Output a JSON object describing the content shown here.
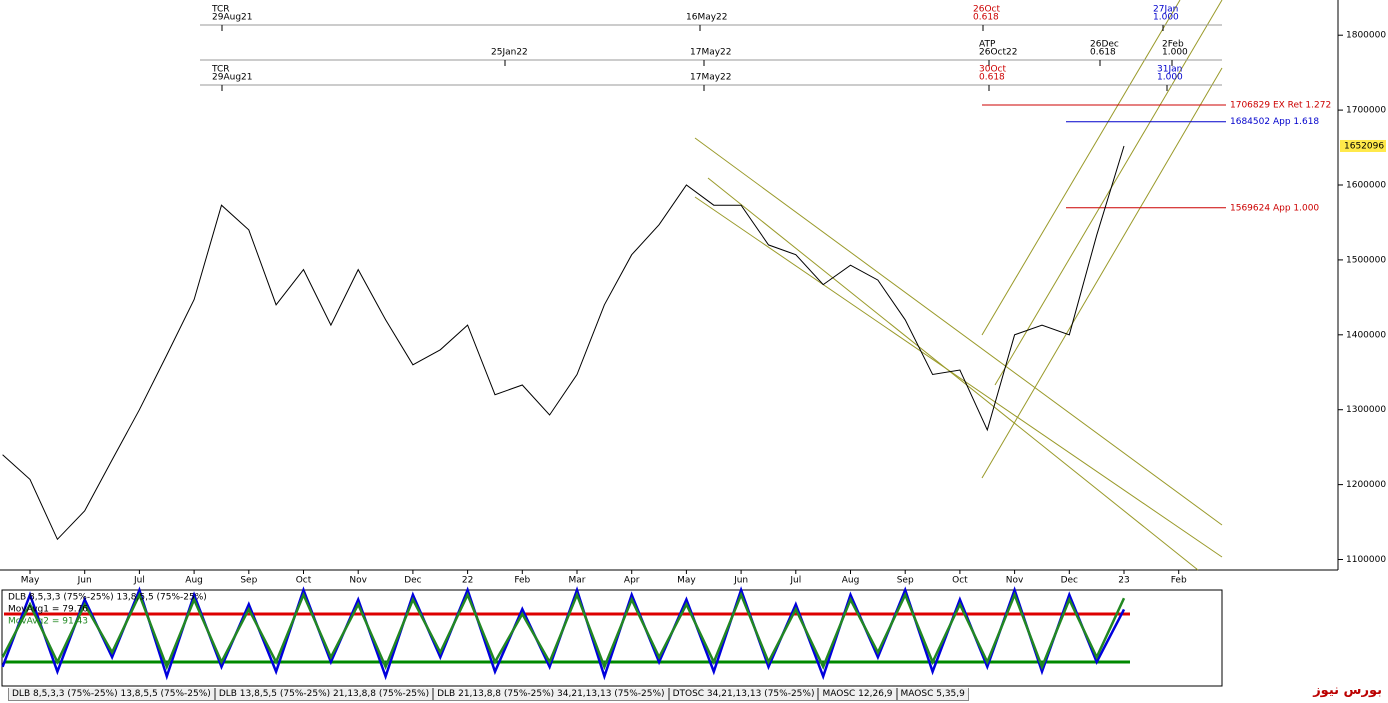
{
  "chart_data": [
    {
      "type": "line",
      "categories": [
        null,
        "May",
        null,
        "Jun",
        null,
        "Jul",
        null,
        "Aug",
        null,
        "Sep",
        null,
        "Oct",
        null,
        "Nov",
        null,
        "Dec",
        null,
        "22",
        null,
        "Feb",
        null,
        "Mar",
        null,
        "Apr",
        null,
        "May",
        null,
        "Jun",
        null,
        "Jul",
        null,
        "Aug",
        null,
        "Sep",
        null,
        "Oct",
        null,
        "Nov",
        null,
        "Dec",
        null,
        "23",
        null,
        "Feb"
      ],
      "series": [
        {
          "color": "#000000",
          "values": [
            1240000,
            1207000,
            1127000,
            1165000,
            1233000,
            1300000,
            1373000,
            1447000,
            1573000,
            1540000,
            1440000,
            1487000,
            1413000,
            1487000,
            1420000,
            1360000,
            1380000,
            1413000,
            1320000,
            1333000,
            1293000,
            1347000,
            1440000,
            1507000,
            1547000,
            1600000,
            1573000,
            1573000,
            1520000,
            1507000,
            1467000,
            1493000,
            1473000,
            1420000,
            1347000,
            1353000,
            1273000,
            1400000,
            1413000,
            1400000,
            1533000,
            1652096,
            null,
            null
          ]
        }
      ],
      "ylim": [
        1086000,
        1847000
      ],
      "yticks": [
        1100000,
        1200000,
        1300000,
        1400000,
        1500000,
        1600000,
        1700000,
        1800000
      ],
      "hlines": [
        {
          "value": 1706829,
          "label": "1706829 EX Ret 1.272",
          "color": "#cc0000"
        },
        {
          "value": 1684502,
          "label": "1684502 App 1.618",
          "color": "#0000cc"
        },
        {
          "value": 1569624,
          "label": "1569624 App 1.000",
          "color": "#cc0000"
        }
      ],
      "annotation_rows": [
        [
          {
            "lines": [
              "TCR",
              "29Aug21"
            ],
            "color": "#000000"
          },
          {
            "lines": [
              "16May22"
            ],
            "color": "#000000"
          },
          {
            "lines": [
              "26Oct",
              "0.618"
            ],
            "color": "#cc0000"
          },
          {
            "lines": [
              "27Jan",
              "1.000"
            ],
            "color": "#0000cc"
          }
        ],
        [
          {
            "lines": [
              "25Jan22"
            ],
            "color": "#000000"
          },
          {
            "lines": [
              "17May22"
            ],
            "color": "#000000"
          },
          {
            "lines": [
              "ATP",
              "26Oct22"
            ],
            "color": "#000000"
          },
          {
            "lines": [
              "26Dec",
              "0.618"
            ],
            "color": "#000000"
          },
          {
            "lines": [
              "2Feb",
              "1.000"
            ],
            "color": "#000000"
          }
        ],
        [
          {
            "lines": [
              "TCR",
              "29Aug21"
            ],
            "color": "#000000"
          },
          {
            "lines": [
              "17May22"
            ],
            "color": "#000000"
          },
          {
            "lines": [
              "30Oct",
              "0.618"
            ],
            "color": "#cc0000"
          },
          {
            "lines": [
              "31Jan",
              "1.000"
            ],
            "color": "#0000cc"
          }
        ]
      ]
    },
    {
      "type": "line",
      "title": "DLB 8,5,3,3 (75%-25%) 13,8,5,5 (75%-25%)",
      "ylim": [
        0,
        100
      ],
      "levels": [
        {
          "value": 75,
          "color": "#dd0000"
        },
        {
          "value": 25,
          "color": "#008800"
        }
      ],
      "series": [
        {
          "name": "MovAvg1 = 79.76",
          "color": "#0000dd",
          "values": [
            20,
            95,
            15,
            90,
            30,
            100,
            10,
            95,
            20,
            85,
            15,
            100,
            25,
            90,
            10,
            95,
            30,
            100,
            15,
            80,
            20,
            100,
            10,
            95,
            25,
            90,
            15,
            100,
            20,
            85,
            10,
            95,
            30,
            100,
            15,
            90,
            20,
            100,
            15,
            95,
            25,
            79.76,
            null,
            null
          ]
        },
        {
          "name": "MovAvg2 = 91.43",
          "color": "#228822",
          "values": [
            30,
            85,
            25,
            85,
            35,
            95,
            20,
            90,
            25,
            80,
            25,
            95,
            30,
            85,
            20,
            90,
            35,
            95,
            25,
            75,
            25,
            95,
            20,
            90,
            30,
            85,
            25,
            95,
            25,
            80,
            20,
            90,
            35,
            95,
            25,
            85,
            25,
            95,
            20,
            90,
            30,
            91.43,
            null,
            null
          ]
        }
      ]
    }
  ],
  "tabs": [
    "DLB 8,5,3,3 (75%-25%) 13,8,5,5 (75%-25%)",
    "DLB 13,8,5,5 (75%-25%) 21,13,8,8 (75%-25%)",
    "DLB 21,13,8,8 (75%-25%) 34,21,13,13 (75%-25%)",
    "DTOSC 34,21,13,13 (75%-25%)",
    "MAOSC 12,26,9",
    "MAOSC 5,35,9"
  ],
  "watermark": "بورس نیوز"
}
